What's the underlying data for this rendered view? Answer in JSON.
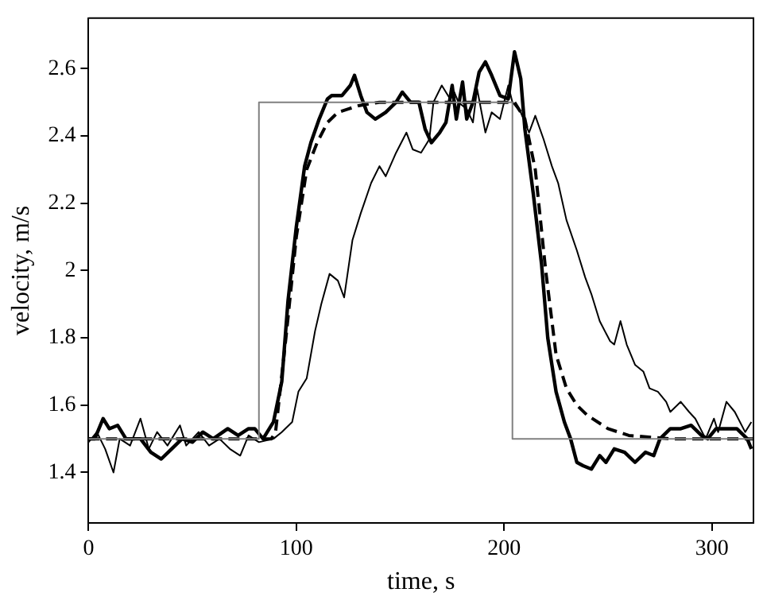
{
  "chart_data": {
    "type": "line",
    "xlabel": "time, s",
    "ylabel": "velocity, m/s",
    "xlim": [
      0,
      320
    ],
    "xticks": [
      0,
      100,
      200,
      300
    ],
    "ylim": [
      1.25,
      2.75
    ],
    "yticks": [
      1.4,
      1.6,
      1.8,
      2,
      2.2,
      2.4,
      2.6
    ],
    "grid": false,
    "legend": false,
    "marker": "none",
    "series": [
      {
        "color": "#808080",
        "line_style": "solid",
        "x": [
          0,
          82,
          82,
          204,
          204,
          320
        ],
        "values": [
          1.5,
          1.5,
          2.5,
          2.5,
          1.5,
          1.5
        ]
      },
      {
        "color": "#000000",
        "line_style": "dashed",
        "x": [
          0,
          88,
          90,
          95,
          100,
          105,
          110,
          115,
          120,
          125,
          130,
          140,
          205,
          210,
          215,
          220,
          225,
          230,
          235,
          240,
          250,
          260,
          280,
          320
        ],
        "values": [
          1.5,
          1.5,
          1.52,
          1.8,
          2.1,
          2.3,
          2.38,
          2.44,
          2.47,
          2.48,
          2.49,
          2.5,
          2.5,
          2.45,
          2.3,
          2.0,
          1.75,
          1.65,
          1.6,
          1.57,
          1.53,
          1.51,
          1.5,
          1.5
        ]
      },
      {
        "color": "#000000",
        "line_style": "solid",
        "x": [
          0,
          3,
          7,
          10,
          14,
          18,
          25,
          30,
          35,
          40,
          45,
          50,
          55,
          60,
          67,
          72,
          77,
          80,
          84,
          86,
          89,
          93,
          96,
          100,
          104,
          107,
          111,
          115,
          117,
          122,
          126,
          128,
          131,
          134,
          138,
          143,
          148,
          151,
          155,
          159,
          162,
          165,
          169,
          172,
          175,
          177,
          180,
          182,
          185,
          188,
          191,
          194,
          198,
          202,
          205,
          208,
          210,
          214,
          218,
          221,
          225,
          229,
          232,
          235,
          238,
          242,
          246,
          249,
          253,
          258,
          263,
          268,
          272,
          275,
          280,
          285,
          290,
          295,
          298,
          302,
          307,
          312,
          317,
          319
        ],
        "values": [
          1.5,
          1.5,
          1.56,
          1.53,
          1.54,
          1.5,
          1.5,
          1.46,
          1.44,
          1.47,
          1.5,
          1.49,
          1.52,
          1.5,
          1.53,
          1.51,
          1.53,
          1.53,
          1.5,
          1.52,
          1.55,
          1.67,
          1.91,
          2.13,
          2.31,
          2.38,
          2.45,
          2.51,
          2.52,
          2.52,
          2.55,
          2.58,
          2.52,
          2.47,
          2.45,
          2.47,
          2.5,
          2.53,
          2.5,
          2.5,
          2.42,
          2.38,
          2.41,
          2.44,
          2.55,
          2.45,
          2.56,
          2.45,
          2.5,
          2.59,
          2.62,
          2.58,
          2.52,
          2.51,
          2.65,
          2.57,
          2.42,
          2.23,
          2.02,
          1.8,
          1.64,
          1.55,
          1.5,
          1.43,
          1.42,
          1.41,
          1.45,
          1.43,
          1.47,
          1.46,
          1.43,
          1.46,
          1.45,
          1.5,
          1.53,
          1.53,
          1.54,
          1.51,
          1.5,
          1.53,
          1.53,
          1.53,
          1.5,
          1.47
        ]
      },
      {
        "color": "#000000",
        "line_style": "solid",
        "x": [
          0,
          4,
          8,
          12,
          15,
          20,
          25,
          29,
          33,
          38,
          44,
          47,
          53,
          58,
          63,
          68,
          73,
          77,
          82,
          89,
          93,
          98,
          101,
          105,
          109,
          112,
          116,
          120,
          123,
          127,
          131,
          136,
          140,
          143,
          148,
          153,
          156,
          160,
          164,
          166,
          170,
          174,
          176,
          178,
          182,
          185,
          187,
          191,
          194,
          198,
          202,
          204,
          208,
          212,
          215,
          219,
          223,
          226,
          230,
          235,
          239,
          242,
          246,
          251,
          253,
          256,
          259,
          263,
          267,
          270,
          274,
          278,
          280,
          285,
          289,
          292,
          297,
          301,
          303,
          307,
          311,
          316,
          319
        ],
        "values": [
          1.49,
          1.52,
          1.47,
          1.4,
          1.5,
          1.48,
          1.56,
          1.47,
          1.52,
          1.48,
          1.54,
          1.48,
          1.52,
          1.48,
          1.5,
          1.47,
          1.45,
          1.51,
          1.49,
          1.5,
          1.52,
          1.55,
          1.64,
          1.68,
          1.82,
          1.9,
          1.99,
          1.97,
          1.92,
          2.09,
          2.17,
          2.26,
          2.31,
          2.28,
          2.35,
          2.41,
          2.36,
          2.35,
          2.39,
          2.5,
          2.55,
          2.51,
          2.53,
          2.5,
          2.48,
          2.44,
          2.54,
          2.41,
          2.47,
          2.45,
          2.55,
          2.5,
          2.47,
          2.41,
          2.46,
          2.39,
          2.31,
          2.26,
          2.15,
          2.06,
          1.98,
          1.93,
          1.85,
          1.79,
          1.78,
          1.85,
          1.78,
          1.72,
          1.7,
          1.65,
          1.64,
          1.61,
          1.58,
          1.61,
          1.58,
          1.56,
          1.5,
          1.56,
          1.52,
          1.61,
          1.58,
          1.52,
          1.55
        ]
      }
    ]
  }
}
